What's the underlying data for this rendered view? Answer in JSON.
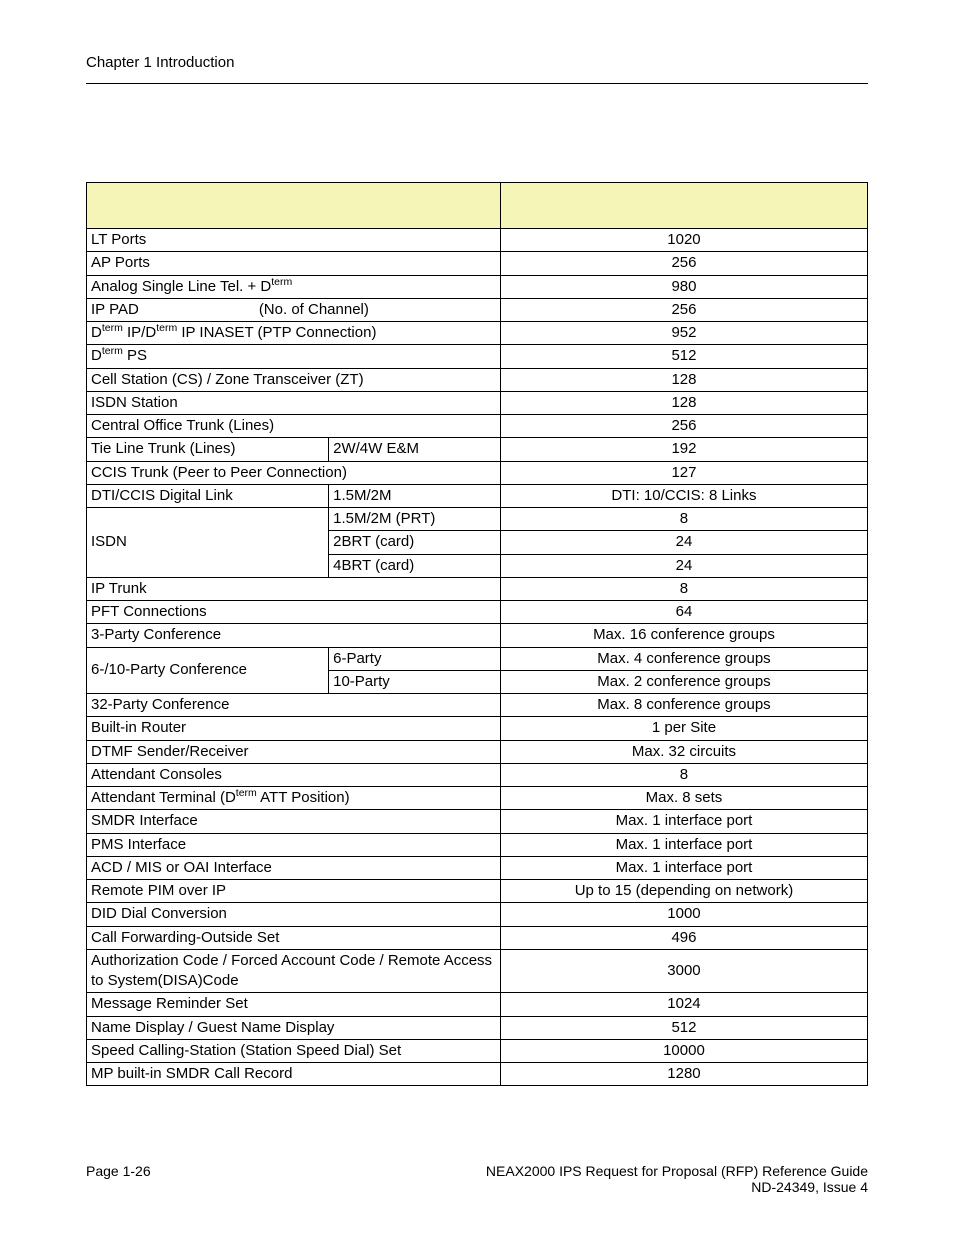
{
  "header": {
    "chapter": "Chapter 1   Introduction"
  },
  "table": {
    "header_bg": "#f5f5b8",
    "rows": [
      {
        "type": "header",
        "cells": [
          {
            "colspan": 2,
            "text": "",
            "cls": "header-cell"
          },
          {
            "text": "",
            "cls": "header-cell val"
          }
        ]
      },
      {
        "cells": [
          {
            "colspan": 2,
            "text": "LT Ports"
          },
          {
            "text": "1020",
            "cls": "val"
          }
        ]
      },
      {
        "cells": [
          {
            "colspan": 2,
            "text": "AP Ports"
          },
          {
            "text": "256",
            "cls": "val"
          }
        ]
      },
      {
        "cells": [
          {
            "colspan": 2,
            "html": "Analog Single Line Tel. + D<sup>term</sup>"
          },
          {
            "text": "980",
            "cls": "val"
          }
        ]
      },
      {
        "cells": [
          {
            "colspan": 2,
            "html": "IP PAD<span class='ip-pad-extra'>(No. of Channel)</span>"
          },
          {
            "text": "256",
            "cls": "val"
          }
        ]
      },
      {
        "cells": [
          {
            "colspan": 2,
            "html": "D<sup>term</sup> IP/D<sup>term</sup> IP INASET (PTP Connection)"
          },
          {
            "text": "952",
            "cls": "val"
          }
        ]
      },
      {
        "cells": [
          {
            "colspan": 2,
            "html": "D<sup>term</sup> PS"
          },
          {
            "text": "512",
            "cls": "val"
          }
        ]
      },
      {
        "cells": [
          {
            "colspan": 2,
            "text": "Cell Station (CS) / Zone Transceiver (ZT)"
          },
          {
            "text": "128",
            "cls": "val"
          }
        ]
      },
      {
        "cells": [
          {
            "colspan": 2,
            "text": "ISDN Station"
          },
          {
            "text": "128",
            "cls": "val"
          }
        ]
      },
      {
        "cells": [
          {
            "colspan": 2,
            "text": "Central Office Trunk (Lines)"
          },
          {
            "text": "256",
            "cls": "val"
          }
        ]
      },
      {
        "cells": [
          {
            "text": "Tie Line Trunk (Lines)"
          },
          {
            "text": "2W/4W E&M"
          },
          {
            "text": "192",
            "cls": "val"
          }
        ]
      },
      {
        "cells": [
          {
            "colspan": 2,
            "text": "CCIS Trunk  (Peer to Peer Connection)"
          },
          {
            "text": "127",
            "cls": "val"
          }
        ]
      },
      {
        "cells": [
          {
            "text": "DTI/CCIS Digital Link"
          },
          {
            "text": "1.5M/2M"
          },
          {
            "text": "DTI: 10/CCIS: 8 Links",
            "cls": "val"
          }
        ]
      },
      {
        "cells": [
          {
            "rowspan": 3,
            "text": "ISDN"
          },
          {
            "text": "1.5M/2M (PRT)"
          },
          {
            "text": "8",
            "cls": "val"
          }
        ]
      },
      {
        "cells": [
          {
            "text": "2BRT (card)"
          },
          {
            "text": "24",
            "cls": "val"
          }
        ]
      },
      {
        "cells": [
          {
            "text": "4BRT (card)"
          },
          {
            "text": "24",
            "cls": "val"
          }
        ]
      },
      {
        "cells": [
          {
            "colspan": 2,
            "text": "IP Trunk"
          },
          {
            "text": "8",
            "cls": "val"
          }
        ]
      },
      {
        "cells": [
          {
            "colspan": 2,
            "text": "PFT Connections"
          },
          {
            "text": "64",
            "cls": "val"
          }
        ]
      },
      {
        "cells": [
          {
            "colspan": 2,
            "text": "3-Party Conference"
          },
          {
            "text": "Max. 16 conference groups",
            "cls": "val"
          }
        ]
      },
      {
        "cells": [
          {
            "rowspan": 2,
            "text": "6-/10-Party Conference"
          },
          {
            "text": "6-Party"
          },
          {
            "text": "Max. 4 conference groups",
            "cls": "val"
          }
        ]
      },
      {
        "cells": [
          {
            "text": "10-Party"
          },
          {
            "text": "Max. 2 conference groups",
            "cls": "val"
          }
        ]
      },
      {
        "cells": [
          {
            "colspan": 2,
            "text": "32-Party Conference"
          },
          {
            "text": "Max. 8 conference groups",
            "cls": "val"
          }
        ]
      },
      {
        "cells": [
          {
            "colspan": 2,
            "text": "Built-in Router"
          },
          {
            "text": "1 per Site",
            "cls": "val"
          }
        ]
      },
      {
        "cells": [
          {
            "colspan": 2,
            "text": "DTMF Sender/Receiver"
          },
          {
            "text": "Max. 32 circuits",
            "cls": "val"
          }
        ]
      },
      {
        "cells": [
          {
            "colspan": 2,
            "text": "Attendant Consoles"
          },
          {
            "text": "8",
            "cls": "val"
          }
        ]
      },
      {
        "cells": [
          {
            "colspan": 2,
            "html": "Attendant Terminal (D<sup>term</sup> ATT Position)"
          },
          {
            "text": "Max. 8 sets",
            "cls": "val"
          }
        ]
      },
      {
        "cells": [
          {
            "colspan": 2,
            "text": "SMDR Interface"
          },
          {
            "text": "Max. 1 interface port",
            "cls": "val"
          }
        ]
      },
      {
        "cells": [
          {
            "colspan": 2,
            "text": "PMS Interface"
          },
          {
            "text": "Max. 1 interface port",
            "cls": "val"
          }
        ]
      },
      {
        "cells": [
          {
            "colspan": 2,
            "text": "ACD / MIS or OAI Interface"
          },
          {
            "text": "Max. 1 interface port",
            "cls": "val"
          }
        ]
      },
      {
        "cells": [
          {
            "colspan": 2,
            "text": "Remote PIM over IP"
          },
          {
            "text": "Up to 15 (depending on network)",
            "cls": "val"
          }
        ]
      },
      {
        "cells": [
          {
            "colspan": 2,
            "text": "DID Dial Conversion"
          },
          {
            "text": "1000",
            "cls": "val"
          }
        ]
      },
      {
        "cells": [
          {
            "colspan": 2,
            "text": "Call Forwarding-Outside Set"
          },
          {
            "text": "496",
            "cls": "val"
          }
        ]
      },
      {
        "cells": [
          {
            "colspan": 2,
            "text": "Authorization Code / Forced Account Code / Remote Access to System(DISA)Code"
          },
          {
            "text": "3000",
            "cls": "val"
          }
        ]
      },
      {
        "cells": [
          {
            "colspan": 2,
            "text": "Message Reminder Set"
          },
          {
            "text": "1024",
            "cls": "val"
          }
        ]
      },
      {
        "cells": [
          {
            "colspan": 2,
            "text": "Name Display / Guest Name Display"
          },
          {
            "text": "512",
            "cls": "val"
          }
        ]
      },
      {
        "cells": [
          {
            "colspan": 2,
            "text": "Speed Calling-Station (Station Speed Dial) Set"
          },
          {
            "text": "10000",
            "cls": "val"
          }
        ]
      },
      {
        "cells": [
          {
            "colspan": 2,
            "text": "MP built-in SMDR Call Record"
          },
          {
            "text": "1280",
            "cls": "val"
          }
        ]
      }
    ],
    "col_widths": [
      "31%",
      "22%",
      "47%"
    ]
  },
  "footer": {
    "page": "Page 1-26",
    "title": "NEAX2000 IPS Request for Proposal (RFP) Reference Guide",
    "issue": "ND-24349, Issue 4"
  }
}
